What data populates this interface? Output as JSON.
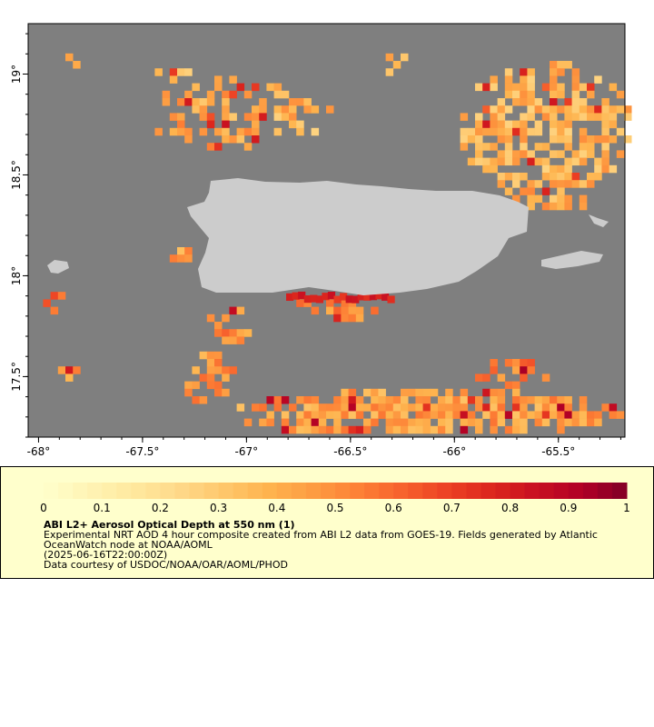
{
  "map": {
    "lon_ticks": [
      "-68°",
      "-67.5°",
      "-67°",
      "-66.5°",
      "-66°",
      "-65.5°"
    ],
    "lat_ticks": [
      "17.5°",
      "18°",
      "18.5°",
      "19°"
    ],
    "lon_range": [
      -68.05,
      -65.18
    ],
    "lat_range": [
      17.2,
      19.25
    ],
    "colors": {
      "ocean": "#7f7f7f",
      "land": "#cccccc",
      "frame": "#000000"
    },
    "scale": "YlOrRd"
  },
  "legend": {
    "tick_labels": [
      "0",
      "0.1",
      "0.2",
      "0.3",
      "0.4",
      "0.5",
      "0.6",
      "0.7",
      "0.8",
      "0.9",
      "1"
    ],
    "range": [
      0,
      1
    ],
    "title": "ABI L2+ Aerosol Optical Depth at 550 nm (1)",
    "line1": "Experimental NRT AOD 4 hour composite created from ABI L2 data from GOES-19. Fields generated by Atlantic",
    "line2": "OceanWatch node at NOAA/AOML",
    "line3": "(2025-06-16T22:00:00Z)",
    "line4": "Data courtesy of USDOC/NOAA/OAR/AOML/PHOD"
  }
}
